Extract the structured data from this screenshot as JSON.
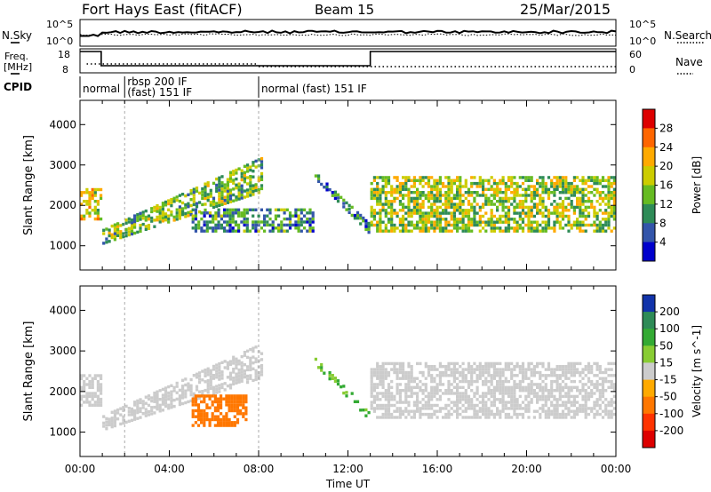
{
  "header": {
    "station": "Fort Hays East (fitACF)",
    "beam": "Beam 15",
    "date": "25/Mar/2015"
  },
  "left_labels": {
    "nsky": "N.Sky",
    "freq_line1": "Freq.",
    "freq_line2": "[MHz]",
    "cpid": "CPID"
  },
  "right_labels": {
    "nsearch": "N.Search",
    "nave": "Nave"
  },
  "noise_panel": {
    "left_ticks": [
      "10^5",
      "10^0"
    ],
    "right_ticks": [
      "10^5",
      "10^0"
    ]
  },
  "freq_panel": {
    "left_ticks": [
      "18",
      "8"
    ],
    "right_ticks": [
      "60",
      "0"
    ]
  },
  "cpid_segments": [
    {
      "label": "normal",
      "start_hour": 0.0,
      "end_hour": 2.0
    },
    {
      "label": "rbsp 200 IF",
      "start_hour": 2.0,
      "end_hour": 8.0
    },
    {
      "label": "(fast) 151 IF",
      "start_hour": 2.0,
      "end_hour": 8.0
    },
    {
      "label": "normal (fast) 151 IF",
      "start_hour": 8.0,
      "end_hour": 24.0
    }
  ],
  "chart_data": [
    {
      "type": "heatmap",
      "title": "Power",
      "ylabel": "Slant Range [km]",
      "xlabel": "Time UT",
      "xlim_hours": [
        0,
        24
      ],
      "ylim_km": [
        400,
        4600
      ],
      "y_ticks": [
        "1000",
        "2000",
        "3000",
        "4000"
      ],
      "x_ticks": [
        "00:00",
        "04:00",
        "08:00",
        "12:00",
        "16:00",
        "20:00",
        "00:00"
      ],
      "colorbar": {
        "label": "Power [dB]",
        "ticks": [
          "28",
          "24",
          "20",
          "16",
          "12",
          "8",
          "4"
        ],
        "colors": [
          "#dd0000",
          "#ff6600",
          "#ffaa00",
          "#cccc00",
          "#66bb22",
          "#2e8b57",
          "#3355aa",
          "#0000cc"
        ]
      },
      "echo_bands": [
        {
          "t0": 0.0,
          "t1": 1.0,
          "r0": 1700,
          "r1": 2500,
          "level": 20
        },
        {
          "t0": 1.0,
          "t1": 8.2,
          "r0": 1100,
          "r1": 3300,
          "level": 16
        },
        {
          "t0": 5.0,
          "t1": 10.5,
          "r0": 1400,
          "r1": 2000,
          "level": 12
        },
        {
          "t0": 10.5,
          "t1": 13.0,
          "r0": 1300,
          "r1": 2700,
          "level": 10
        },
        {
          "t0": 13.0,
          "t1": 24.0,
          "r0": 1400,
          "r1": 2800,
          "level": 18
        }
      ]
    },
    {
      "type": "heatmap",
      "title": "Velocity",
      "ylabel": "Slant Range [km]",
      "xlabel": "Time UT",
      "xlim_hours": [
        0,
        24
      ],
      "ylim_km": [
        400,
        4600
      ],
      "y_ticks": [
        "1000",
        "2000",
        "3000",
        "4000"
      ],
      "x_ticks": [
        "00:00",
        "04:00",
        "08:00",
        "12:00",
        "16:00",
        "20:00",
        "00:00"
      ],
      "colorbar": {
        "label": "Velocity [m s^-1]",
        "ticks": [
          "200",
          "100",
          "50",
          "15",
          "-15",
          "-50",
          "-100",
          "-200"
        ],
        "colors": [
          "#1133aa",
          "#2e8b57",
          "#33aa33",
          "#88cc33",
          "#cccccc",
          "#ffaa00",
          "#ff7700",
          "#ff3300",
          "#dd0000"
        ]
      },
      "echo_bands": [
        {
          "t0": 0.0,
          "t1": 1.0,
          "r0": 1700,
          "r1": 2500,
          "level": 0
        },
        {
          "t0": 1.0,
          "t1": 8.2,
          "r0": 1100,
          "r1": 3300,
          "level": 0
        },
        {
          "t0": 5.0,
          "t1": 7.5,
          "r0": 1200,
          "r1": 2000,
          "level": -60
        },
        {
          "t0": 10.5,
          "t1": 13.0,
          "r0": 1300,
          "r1": 2700,
          "level": 30
        },
        {
          "t0": 13.0,
          "t1": 24.0,
          "r0": 1400,
          "r1": 2800,
          "level": 0
        }
      ]
    }
  ]
}
